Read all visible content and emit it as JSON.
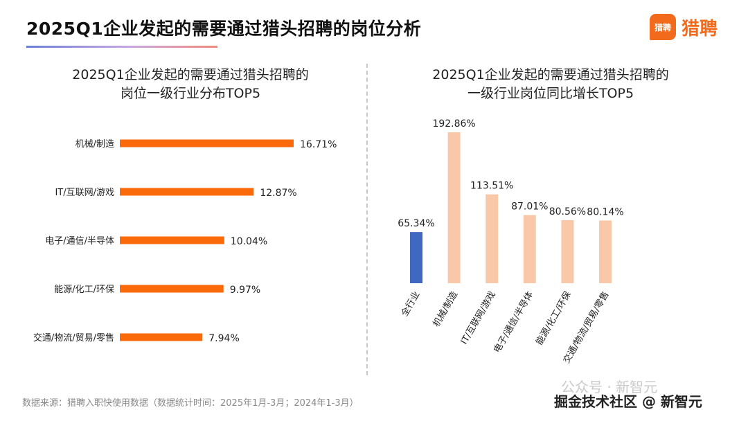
{
  "header": {
    "title": "2025Q1企业发起的需要通过猎头招聘的岗位分析",
    "logo_mark": "猎聘",
    "logo_text": "猎聘"
  },
  "colors": {
    "accent": "#f26a1b",
    "bar_left": "#fa6a0a",
    "bar_highlight": "#3f68c2",
    "bar_light": "#f8c8a8"
  },
  "chart_data": [
    {
      "type": "bar",
      "orientation": "horizontal",
      "title": [
        "2025Q1企业发起的需要通过猎头招聘的",
        "岗位一级行业分布TOP5"
      ],
      "categories": [
        "机械/制造",
        "IT/互联网/游戏",
        "电子/通信/半导体",
        "能源/化工/环保",
        "交通/物流/贸易/零售"
      ],
      "values": [
        16.71,
        12.87,
        10.04,
        9.97,
        7.94
      ],
      "labels": [
        "16.71%",
        "12.87%",
        "10.04%",
        "9.97%",
        "7.94%"
      ],
      "unit": "%",
      "grid": false
    },
    {
      "type": "bar",
      "orientation": "vertical",
      "title": [
        "2025Q1企业发起的需要通过猎头招聘的",
        "一级行业岗位同比增长TOP5"
      ],
      "categories": [
        "全行业",
        "机械/制造",
        "IT/互联网/游戏",
        "电子/通信/半导体",
        "能源/化工/环保",
        "交通/物流/贸易/零售"
      ],
      "values": [
        65.34,
        192.86,
        113.51,
        87.01,
        80.56,
        80.14
      ],
      "labels": [
        "65.34%",
        "192.86%",
        "113.51%",
        "87.01%",
        "80.56%",
        "80.14%"
      ],
      "highlight_index": 0,
      "unit": "%",
      "grid": false
    }
  ],
  "footer": {
    "source": "数据来源：猎聘入职快使用数据（数据统计时间：2025年1月-3月；2024年1-3月）"
  },
  "watermark": {
    "line1": "公众号 · 新智元",
    "line2": "掘金技术社区 @ 新智元"
  }
}
